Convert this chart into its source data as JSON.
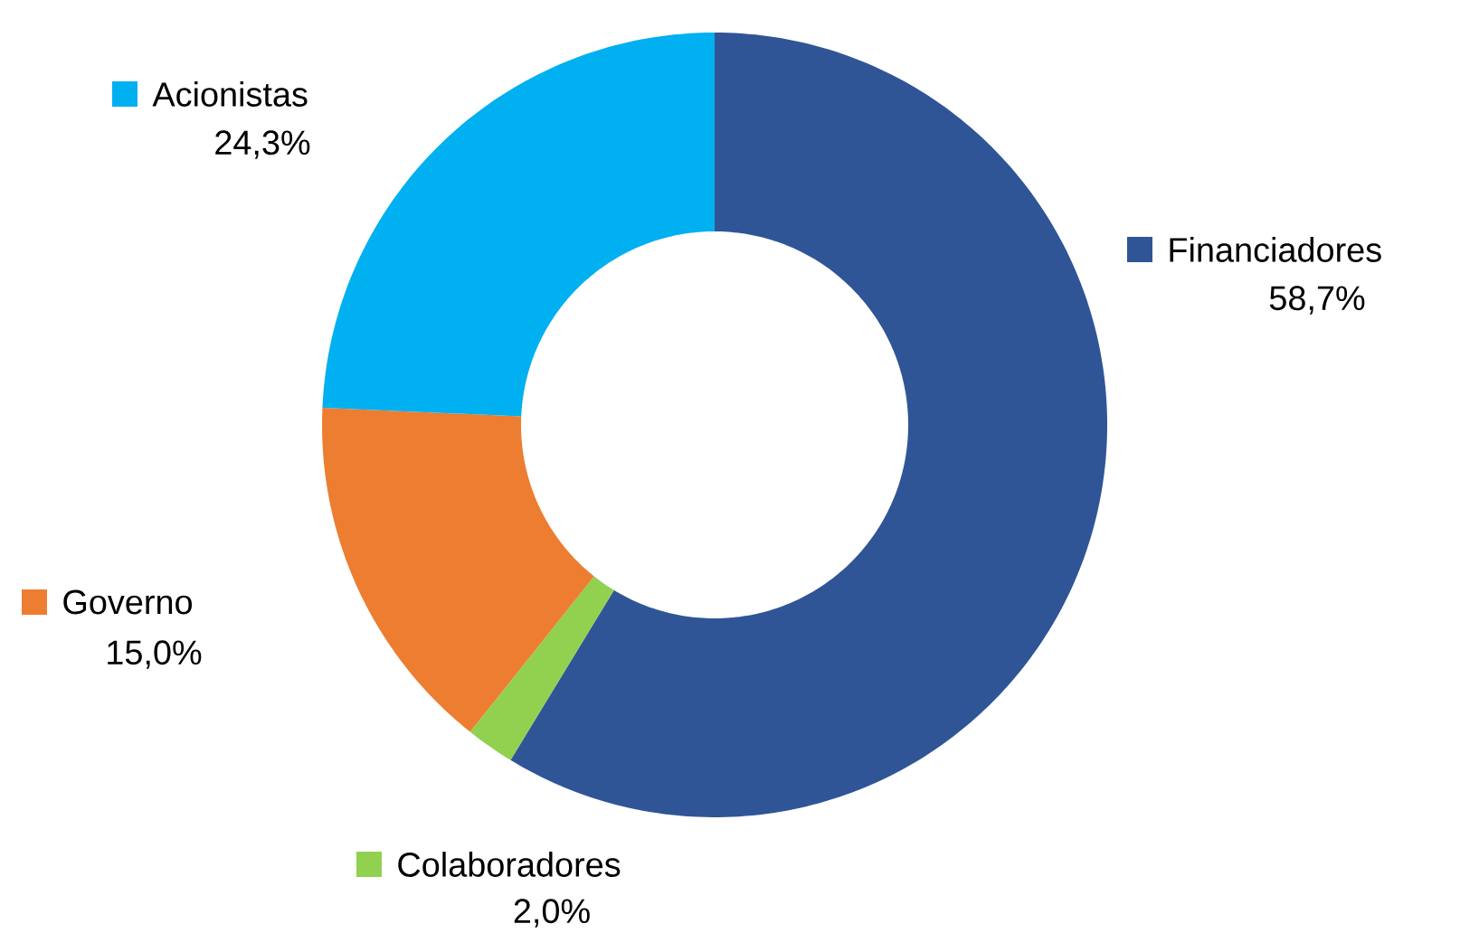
{
  "chart_data": {
    "type": "donut",
    "categories": [
      "Financiadores",
      "Colaboradores",
      "Governo",
      "Acionistas"
    ],
    "values": [
      58.7,
      2.0,
      15.0,
      24.3
    ],
    "value_labels": [
      "58,7%",
      "2,0%",
      "15,0%",
      "24,3%"
    ],
    "colors": [
      "#2f5597",
      "#92d050",
      "#ed7d31",
      "#00b0f0"
    ],
    "legend": "right"
  }
}
